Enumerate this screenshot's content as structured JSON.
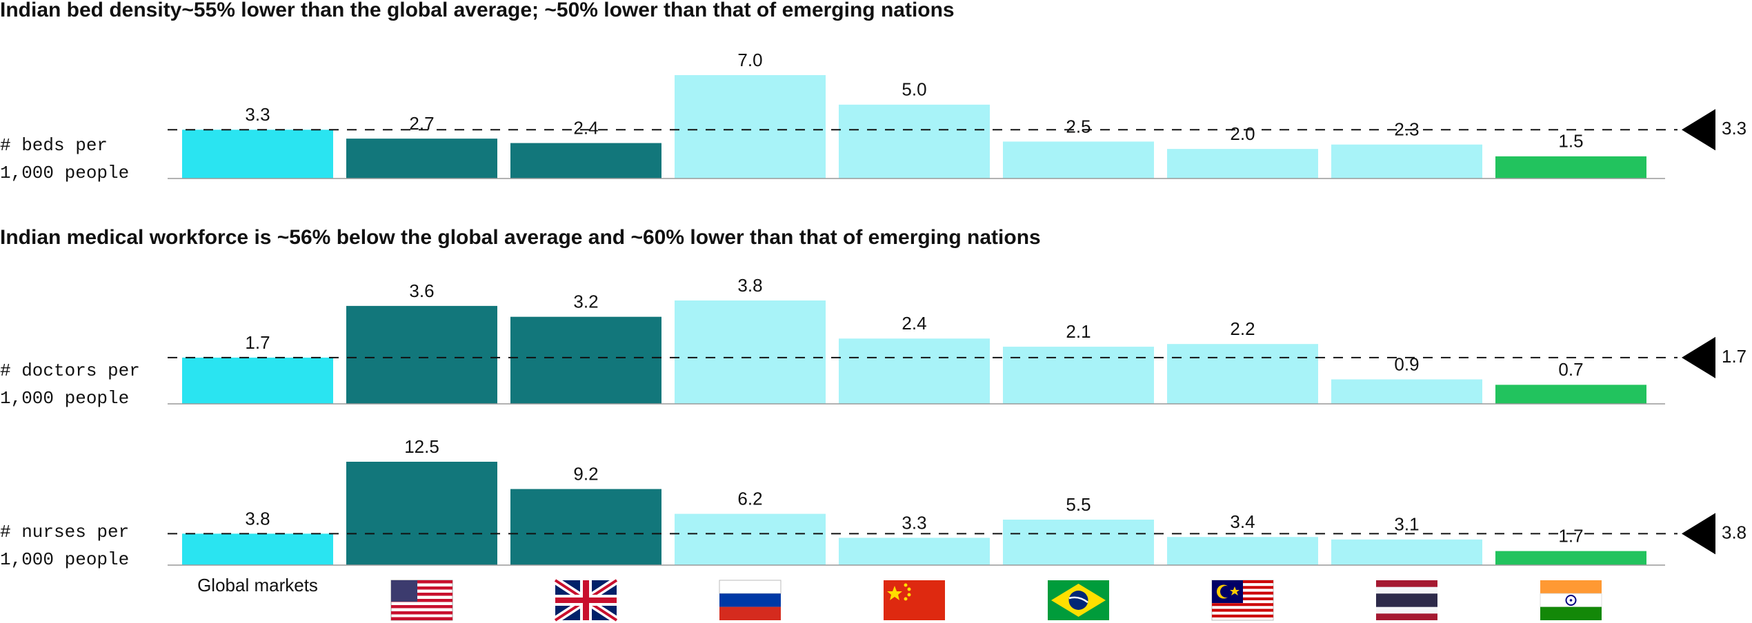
{
  "chart_data": [
    {
      "type": "bar",
      "title": "Indian bed density~55% lower than the global average; ~50% lower than that of emerging nations",
      "ylabel": [
        "# beds per",
        "1,000 people"
      ],
      "values": [
        3.3,
        2.7,
        2.4,
        7.0,
        5.0,
        2.5,
        2.0,
        2.3,
        1.5
      ],
      "value_labels": [
        "3.3",
        "2.7",
        "2.4",
        "7.0",
        "5.0",
        "2.5",
        "2.0",
        "2.3",
        "1.5"
      ],
      "colors": [
        "#2ae4f1",
        "#12777b",
        "#12777b",
        "#a8f3f8",
        "#a8f3f8",
        "#a8f3f8",
        "#a8f3f8",
        "#a8f3f8",
        "#22c35e"
      ],
      "ylim": [
        0,
        7.0
      ],
      "reference_line": 3.3
    },
    {
      "type": "bar",
      "title": "Indian medical workforce is ~56% below the global average and ~60% lower than that of emerging nations",
      "ylabel": [
        "# doctors per",
        "1,000 people"
      ],
      "values": [
        1.7,
        3.6,
        3.2,
        3.8,
        2.4,
        2.1,
        2.2,
        0.9,
        0.7
      ],
      "value_labels": [
        "1.7",
        "3.6",
        "3.2",
        "3.8",
        "2.4",
        "2.1",
        "2.2",
        "0.9",
        "0.7"
      ],
      "colors": [
        "#2ae4f1",
        "#12777b",
        "#12777b",
        "#a8f3f8",
        "#a8f3f8",
        "#a8f3f8",
        "#a8f3f8",
        "#a8f3f8",
        "#22c35e"
      ],
      "ylim": [
        0,
        3.8
      ],
      "reference_line": 1.7
    },
    {
      "type": "bar",
      "ylabel": [
        "# nurses per",
        "1,000 people"
      ],
      "categories": [
        "Global markets",
        null,
        null,
        null,
        null,
        null,
        null,
        null,
        null
      ],
      "values": [
        3.8,
        12.5,
        9.2,
        6.2,
        3.3,
        5.5,
        3.4,
        3.1,
        1.7
      ],
      "value_labels": [
        "3.8",
        "12.5",
        "9.2",
        "6.2",
        "3.3",
        "5.5",
        "3.4",
        "3.1",
        "1.7"
      ],
      "colors": [
        "#2ae4f1",
        "#12777b",
        "#12777b",
        "#a8f3f8",
        "#a8f3f8",
        "#a8f3f8",
        "#a8f3f8",
        "#a8f3f8",
        "#22c35e"
      ],
      "ylim": [
        0,
        12.5
      ],
      "reference_line": 3.8
    }
  ]
}
